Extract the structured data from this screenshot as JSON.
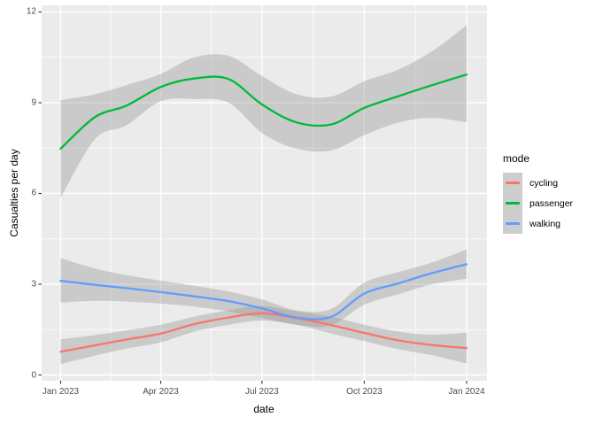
{
  "chart_data": {
    "type": "line",
    "title": "",
    "xlabel": "date",
    "ylabel": "Casualties per day",
    "x_tick_labels": [
      "Jan 2023",
      "Apr 2023",
      "Jul 2023",
      "Oct 2023",
      "Jan 2024"
    ],
    "x_tick_days": [
      0,
      90,
      181,
      273,
      365
    ],
    "x_minor_days": [
      45,
      135.5,
      227,
      319
    ],
    "y_ticks": [
      0,
      3,
      6,
      9,
      12
    ],
    "y_tick_labels": [
      "0",
      "3",
      "6",
      "9",
      "12"
    ],
    "y_minor_ticks": [
      1.5,
      4.5,
      7.5,
      10.5
    ],
    "ylim": [
      -0.2,
      12.4
    ],
    "xlim_days": [
      -18.25,
      383.25
    ],
    "grid": "white major and minor gridlines on grey panel",
    "panel_bg": "#EBEBEB",
    "ribbon_color": "#999999",
    "ribbon_opacity": 0.4,
    "axis_text_color": "#4D4D4D",
    "tick_mark_color": "#333333",
    "smoothing": "loess smooth with 95% confidence ribbon",
    "sample_days": [
      0,
      31,
      59,
      90,
      120,
      151,
      181,
      212,
      243,
      273,
      304,
      334,
      365
    ],
    "sample_months": [
      "Jan 2023",
      "Feb 2023",
      "Mar 2023",
      "Apr 2023",
      "May 2023",
      "Jun 2023",
      "Jul 2023",
      "Aug 2023",
      "Sep 2023",
      "Oct 2023",
      "Nov 2023",
      "Dec 2023",
      "Jan 2024"
    ],
    "legend": {
      "title": "mode",
      "position": "right",
      "entries": [
        {
          "label": "cycling",
          "color": "#F8766D"
        },
        {
          "label": "passenger",
          "color": "#00BA38"
        },
        {
          "label": "walking",
          "color": "#619CFF"
        }
      ]
    },
    "series": [
      {
        "name": "cycling",
        "color": "#F8766D",
        "values": [
          0.77,
          0.98,
          1.17,
          1.37,
          1.68,
          1.9,
          2.04,
          1.88,
          1.65,
          1.39,
          1.14,
          0.99,
          0.89
        ],
        "ci_upper": [
          1.18,
          1.32,
          1.47,
          1.66,
          1.93,
          2.14,
          2.28,
          2.1,
          1.93,
          1.66,
          1.43,
          1.33,
          1.4
        ],
        "ci_lower": [
          0.36,
          0.64,
          0.87,
          1.08,
          1.43,
          1.66,
          1.8,
          1.66,
          1.37,
          1.12,
          0.85,
          0.65,
          0.38
        ]
      },
      {
        "name": "passenger",
        "color": "#00BA38",
        "values": [
          7.48,
          8.53,
          8.9,
          9.52,
          9.8,
          9.78,
          8.94,
          8.35,
          8.28,
          8.83,
          9.22,
          9.58,
          9.93
        ],
        "ci_upper": [
          9.08,
          9.28,
          9.58,
          9.95,
          10.5,
          10.55,
          9.88,
          9.28,
          9.2,
          9.71,
          10.1,
          10.7,
          11.56
        ],
        "ci_lower": [
          5.85,
          7.8,
          8.25,
          9.05,
          9.12,
          9.0,
          8.0,
          7.48,
          7.42,
          7.93,
          8.35,
          8.5,
          8.35
        ]
      },
      {
        "name": "walking",
        "color": "#619CFF",
        "values": [
          3.11,
          2.98,
          2.87,
          2.74,
          2.6,
          2.44,
          2.2,
          1.9,
          1.92,
          2.69,
          3.03,
          3.37,
          3.66
        ],
        "ci_upper": [
          3.86,
          3.52,
          3.3,
          3.12,
          2.95,
          2.76,
          2.5,
          2.14,
          2.18,
          3.05,
          3.4,
          3.72,
          4.15
        ],
        "ci_lower": [
          2.39,
          2.45,
          2.43,
          2.36,
          2.26,
          2.1,
          1.88,
          1.66,
          1.64,
          2.32,
          2.67,
          3.0,
          3.18
        ]
      }
    ]
  }
}
